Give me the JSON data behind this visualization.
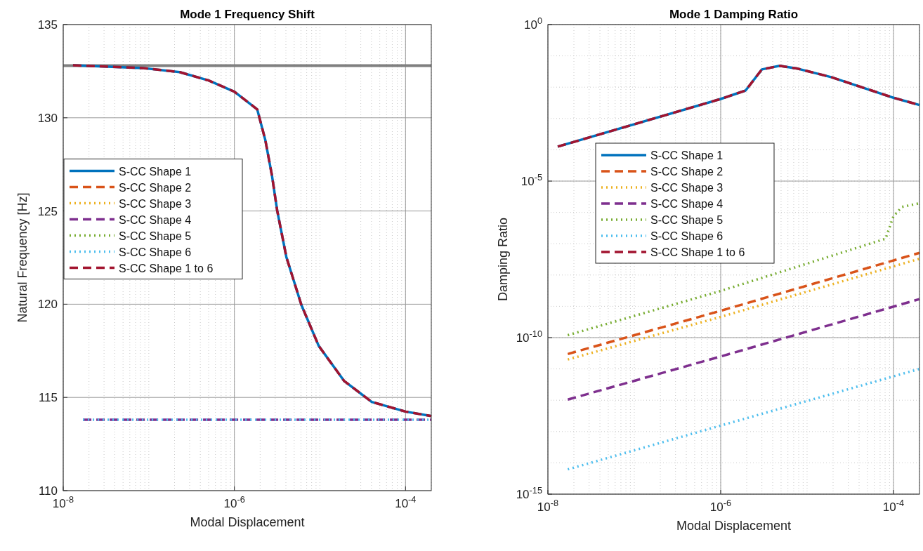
{
  "chart_data": [
    {
      "type": "line",
      "title": "Mode 1 Frequency Shift",
      "xlabel": "Modal Displacement",
      "ylabel": "Natural Frequency [Hz]",
      "log": "x",
      "grid": true,
      "legend": "left",
      "xlim": [
        1e-08,
        0.0002
      ],
      "xticks": [
        {
          "value": 1e-08,
          "label": "10$^{-8}$"
        },
        {
          "value": 1e-06,
          "label": "10$^{-6}$"
        },
        {
          "value": 0.0001,
          "label": "10$^{-4}$"
        }
      ],
      "ylim": [
        110,
        135
      ],
      "yticks": [
        110,
        115,
        120,
        125,
        130,
        135
      ],
      "ref_lines": [
        {
          "axis": "y",
          "value": 132.8,
          "color": "#808080"
        }
      ],
      "series": [
        {
          "name": "S-CC Shape 1",
          "color": "#0072bd",
          "line_style": "solid",
          "x": [
            1.3e-08,
            8.4e-08,
            2.3e-07,
            5e-07,
            1e-06,
            1.85e-06,
            2.3e-06,
            2.75e-06,
            3.16e-06,
            4.05e-06,
            6.07e-06,
            9.66e-06,
            1.91e-05,
            4.03e-05,
            0.0001,
            0.0002
          ],
          "values": [
            132.82,
            132.67,
            132.45,
            132.0,
            131.4,
            130.45,
            128.8,
            126.9,
            125.04,
            122.53,
            119.96,
            117.77,
            115.89,
            114.76,
            114.24,
            114.0
          ]
        },
        {
          "name": "S-CC Shape 2",
          "color": "#d95319",
          "line_style": "dashed"
        },
        {
          "name": "S-CC Shape 3",
          "color": "#edb120",
          "line_style": "dotted"
        },
        {
          "name": "S-CC Shape 4",
          "color": "#7e2f8e",
          "line_style": "dashed",
          "x": [
            1.7e-08,
            0.0002
          ],
          "values": [
            113.8,
            113.8
          ]
        },
        {
          "name": "S-CC Shape 5",
          "color": "#77ac30",
          "line_style": "dotted"
        },
        {
          "name": "S-CC Shape 6",
          "color": "#4dbeee",
          "line_style": "dotted",
          "x": [
            1.7e-08,
            0.0002
          ],
          "values": [
            113.8,
            113.8
          ]
        },
        {
          "name": "S-CC Shape 1 to 6",
          "color": "#a2142f",
          "line_style": "dashed",
          "x": [
            1.3e-08,
            8.4e-08,
            2.3e-07,
            5e-07,
            1e-06,
            1.85e-06,
            2.3e-06,
            2.75e-06,
            3.16e-06,
            4.05e-06,
            6.07e-06,
            9.66e-06,
            1.91e-05,
            4.03e-05,
            0.0001,
            0.0002
          ],
          "values": [
            132.82,
            132.67,
            132.45,
            132.0,
            131.4,
            130.45,
            128.8,
            126.9,
            125.04,
            122.53,
            119.96,
            117.77,
            115.89,
            114.76,
            114.24,
            114.0
          ]
        }
      ]
    },
    {
      "type": "line",
      "title": "Mode 1 Damping Ratio",
      "xlabel": "Modal Displacement",
      "ylabel": "Damping Ratio",
      "log": "xy",
      "grid": true,
      "legend": "top left",
      "xlim": [
        1e-08,
        0.0002
      ],
      "xticks": [
        {
          "value": 1e-08,
          "label": "10$^{-8}$"
        },
        {
          "value": 1e-06,
          "label": "10$^{-6}$"
        },
        {
          "value": 0.0001,
          "label": "10$^{-4}$"
        }
      ],
      "ylim": [
        1e-15,
        1
      ],
      "yticks": [
        {
          "value": 1e-15,
          "label": "10$^{-15}$"
        },
        {
          "value": 1e-10,
          "label": "10$^{-10}$"
        },
        {
          "value": 1e-05,
          "label": "10$^{-5}$"
        },
        {
          "value": 1,
          "label": "10$^{0}$"
        }
      ],
      "series": [
        {
          "name": "S-CC Shape 1",
          "color": "#0072bd",
          "line_style": "solid",
          "x": [
            1.3e-08,
            1e-06,
            1.94e-06,
            3e-06,
            4.8e-06,
            7.8e-06,
            1.9e-05,
            0.0001,
            0.0002
          ],
          "values": [
            0.000126,
            0.0042,
            0.0078,
            0.037,
            0.048,
            0.039,
            0.021,
            0.0046,
            0.0027
          ]
        },
        {
          "name": "S-CC Shape 2",
          "color": "#d95319",
          "line_style": "dashed",
          "x": [
            1.7e-08,
            1e-06,
            0.0002
          ],
          "values": [
            3e-11,
            7.2e-10,
            5.1e-08
          ]
        },
        {
          "name": "S-CC Shape 3",
          "color": "#edb120",
          "line_style": "dotted",
          "x": [
            1.7e-08,
            1e-06,
            0.0002
          ],
          "values": [
            2e-11,
            4.6e-10,
            3.3e-08
          ]
        },
        {
          "name": "S-CC Shape 4",
          "color": "#7e2f8e",
          "line_style": "dashed",
          "x": [
            1.7e-08,
            1e-06,
            0.0002
          ],
          "values": [
            1.05e-12,
            2.5e-11,
            1.7e-09
          ]
        },
        {
          "name": "S-CC Shape 5",
          "color": "#77ac30",
          "line_style": "dotted",
          "x": [
            1.7e-08,
            1e-06,
            8.1e-05,
            0.0001,
            0.000126,
            0.0002
          ],
          "values": [
            1.2e-10,
            3.1e-09,
            1.44e-07,
            7.6e-07,
            1.5e-06,
            1.96e-06
          ]
        },
        {
          "name": "S-CC Shape 6",
          "color": "#4dbeee",
          "line_style": "dotted",
          "x": [
            1.7e-08,
            1e-06,
            0.0002
          ],
          "values": [
            6.2e-15,
            1.55e-13,
            1e-11
          ]
        },
        {
          "name": "S-CC Shape 1 to 6",
          "color": "#a2142f",
          "line_style": "dashed",
          "x": [
            1.3e-08,
            1e-06,
            1.94e-06,
            3e-06,
            4.8e-06,
            7.8e-06,
            1.9e-05,
            0.0001,
            0.0002
          ],
          "values": [
            0.000126,
            0.0042,
            0.0078,
            0.037,
            0.048,
            0.039,
            0.021,
            0.0046,
            0.0027
          ]
        }
      ]
    }
  ]
}
